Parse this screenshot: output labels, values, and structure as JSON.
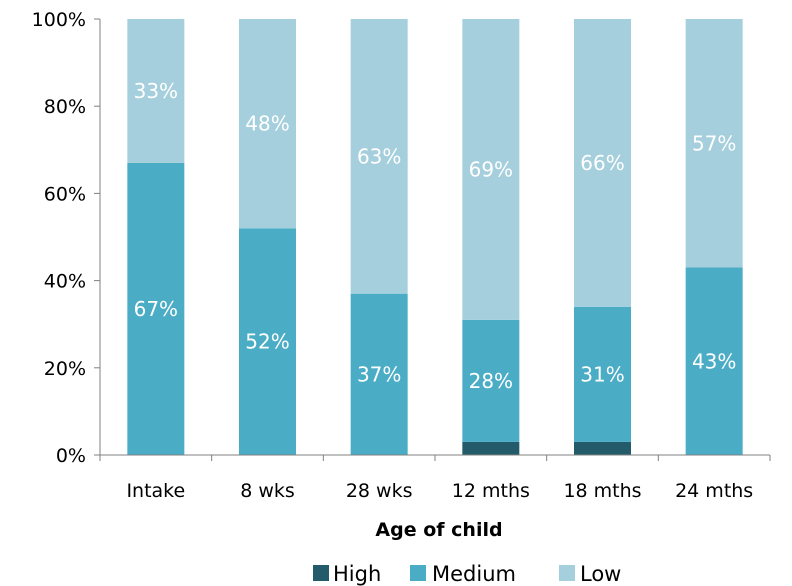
{
  "chart_data": {
    "type": "bar",
    "stacked": true,
    "categories": [
      "Intake",
      "8 wks",
      "28 wks",
      "12 mths",
      "18 mths",
      "24 mths"
    ],
    "series": [
      {
        "name": "High",
        "values": [
          0,
          0,
          0,
          3,
          3,
          0
        ],
        "color": "#245b6b"
      },
      {
        "name": "Medium",
        "values": [
          67,
          52,
          37,
          28,
          31,
          43
        ],
        "color": "#4bacc6"
      },
      {
        "name": "Low",
        "values": [
          33,
          48,
          63,
          69,
          66,
          57
        ],
        "color": "#a5cfdc"
      }
    ],
    "data_labels": {
      "High": [
        "",
        "",
        "",
        "",
        "",
        ""
      ],
      "Medium": [
        "67%",
        "52%",
        "37%",
        "28%",
        "31%",
        "43%"
      ],
      "Low": [
        "33%",
        "48%",
        "63%",
        "69%",
        "66%",
        "57%"
      ]
    },
    "yticks": [
      "0%",
      "20%",
      "40%",
      "60%",
      "80%",
      "100%"
    ],
    "ylim": [
      0,
      100
    ],
    "xlabel": "Age of child",
    "ylabel": "",
    "title": "",
    "grid": false,
    "legend": {
      "position": "bottom",
      "entries": [
        "High",
        "Medium",
        "Low"
      ]
    }
  }
}
